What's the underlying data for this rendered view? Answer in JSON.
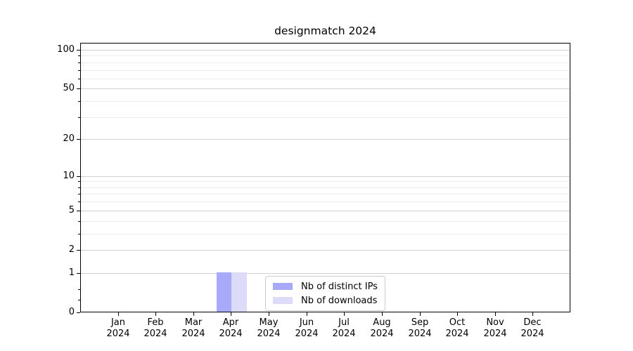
{
  "chart": {
    "title": "designmatch 2024"
  },
  "chart_data": {
    "type": "bar",
    "title": "designmatch 2024",
    "categories": [
      "Jan 2024",
      "Feb 2024",
      "Mar 2024",
      "Apr 2024",
      "May 2024",
      "Jun 2024",
      "Jul 2024",
      "Aug 2024",
      "Sep 2024",
      "Oct 2024",
      "Nov 2024",
      "Dec 2024"
    ],
    "series": [
      {
        "name": "Nb of distinct IPs",
        "color": "#a9a9f9",
        "values": [
          0,
          0,
          0,
          1,
          0,
          0,
          0,
          0,
          0,
          0,
          0,
          0
        ]
      },
      {
        "name": "Nb of downloads",
        "color": "#dcdcfa",
        "values": [
          0,
          0,
          0,
          1,
          0,
          0,
          0,
          0,
          0,
          0,
          0,
          0
        ]
      }
    ],
    "xlabel": "",
    "ylabel": "",
    "yscale": "log1p",
    "ylim": [
      0,
      113
    ],
    "yticks": [
      0,
      1,
      2,
      5,
      10,
      20,
      50,
      100
    ],
    "minor_yticks": [
      0.25,
      0.5,
      3,
      4,
      6,
      7,
      8,
      9,
      30,
      40,
      60,
      70,
      80,
      90
    ],
    "grid": "horizontal",
    "legend_position": "lower center",
    "colors": {
      "grid_major": "#d0d0d0",
      "grid_minor": "#ededed",
      "spine": "#000000",
      "background": "#ffffff"
    }
  }
}
